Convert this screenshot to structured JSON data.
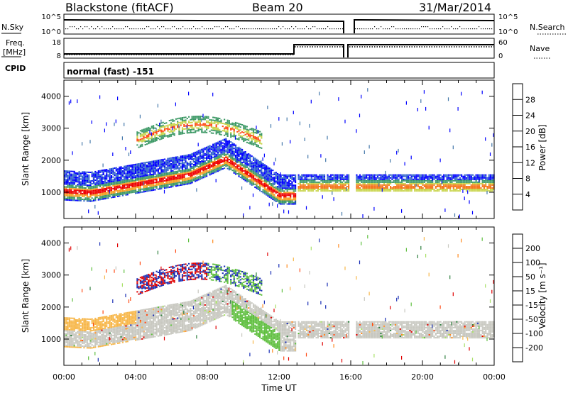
{
  "header": {
    "station": "Blackstone (fitACF)",
    "beam": "Beam 20",
    "date": "31/Mar/2014"
  },
  "top_panels": {
    "nsky": {
      "label": "N.Sky",
      "ticks": [
        "10^5",
        "10^0"
      ],
      "right_label": "N.Search",
      "right_ticks": [
        "10^5",
        "10^0"
      ]
    },
    "freq": {
      "label_line1": "Freq.",
      "label_line2": "[MHz]",
      "ticks": [
        "18",
        "8"
      ],
      "right_label": "Nave",
      "right_ticks": [
        "60",
        "0"
      ]
    },
    "cpid": {
      "label": "CPID",
      "mode": "normal (fast) -151"
    }
  },
  "chart_data": [
    {
      "type": "heatmap",
      "title": "",
      "quantity": "Power",
      "xlabel": "Time UT",
      "ylabel": "Slant Range [km]",
      "x_ticks": [
        "00:00",
        "04:00",
        "08:00",
        "12:00",
        "16:00",
        "20:00",
        "00:00"
      ],
      "y_ticks": [
        "1000",
        "2000",
        "3000",
        "4000"
      ],
      "xlim_hours": [
        0,
        24
      ],
      "ylim_km": [
        180,
        4500
      ],
      "colorbar": {
        "label": "Power [dB]",
        "tick_labels": [
          "28",
          "24",
          "20",
          "16",
          "12",
          "8",
          "4"
        ],
        "colors": [
          "#0000ff",
          "#3366cc",
          "#4477aa",
          "#3d9966",
          "#77c255",
          "#c8d44a",
          "#f4a023",
          "#f47820",
          "#ff4a14",
          "#ee0000"
        ]
      }
    },
    {
      "type": "heatmap",
      "title": "",
      "quantity": "Velocity",
      "xlabel": "Time UT",
      "ylabel": "Slant Range [km]",
      "x_ticks": [
        "00:00",
        "04:00",
        "08:00",
        "12:00",
        "16:00",
        "20:00",
        "00:00"
      ],
      "y_ticks": [
        "1000",
        "2000",
        "3000",
        "4000"
      ],
      "xlim_hours": [
        0,
        24
      ],
      "ylim_km": [
        180,
        4500
      ],
      "colorbar": {
        "label": "Velocity [m s⁻¹]",
        "tick_labels": [
          "200",
          "100",
          "50",
          "15",
          "-15",
          "-50",
          "-100",
          "-200"
        ],
        "colors": [
          "#1a2fb5",
          "#2f7f3f",
          "#5fbf3f",
          "#a8e067",
          "#c8c8c0",
          "#f7b74a",
          "#ff8a1f",
          "#ff4a14",
          "#e00000"
        ]
      }
    }
  ],
  "colors": {
    "axis": "#000000",
    "ground_scatter": "#bfbfb8"
  }
}
